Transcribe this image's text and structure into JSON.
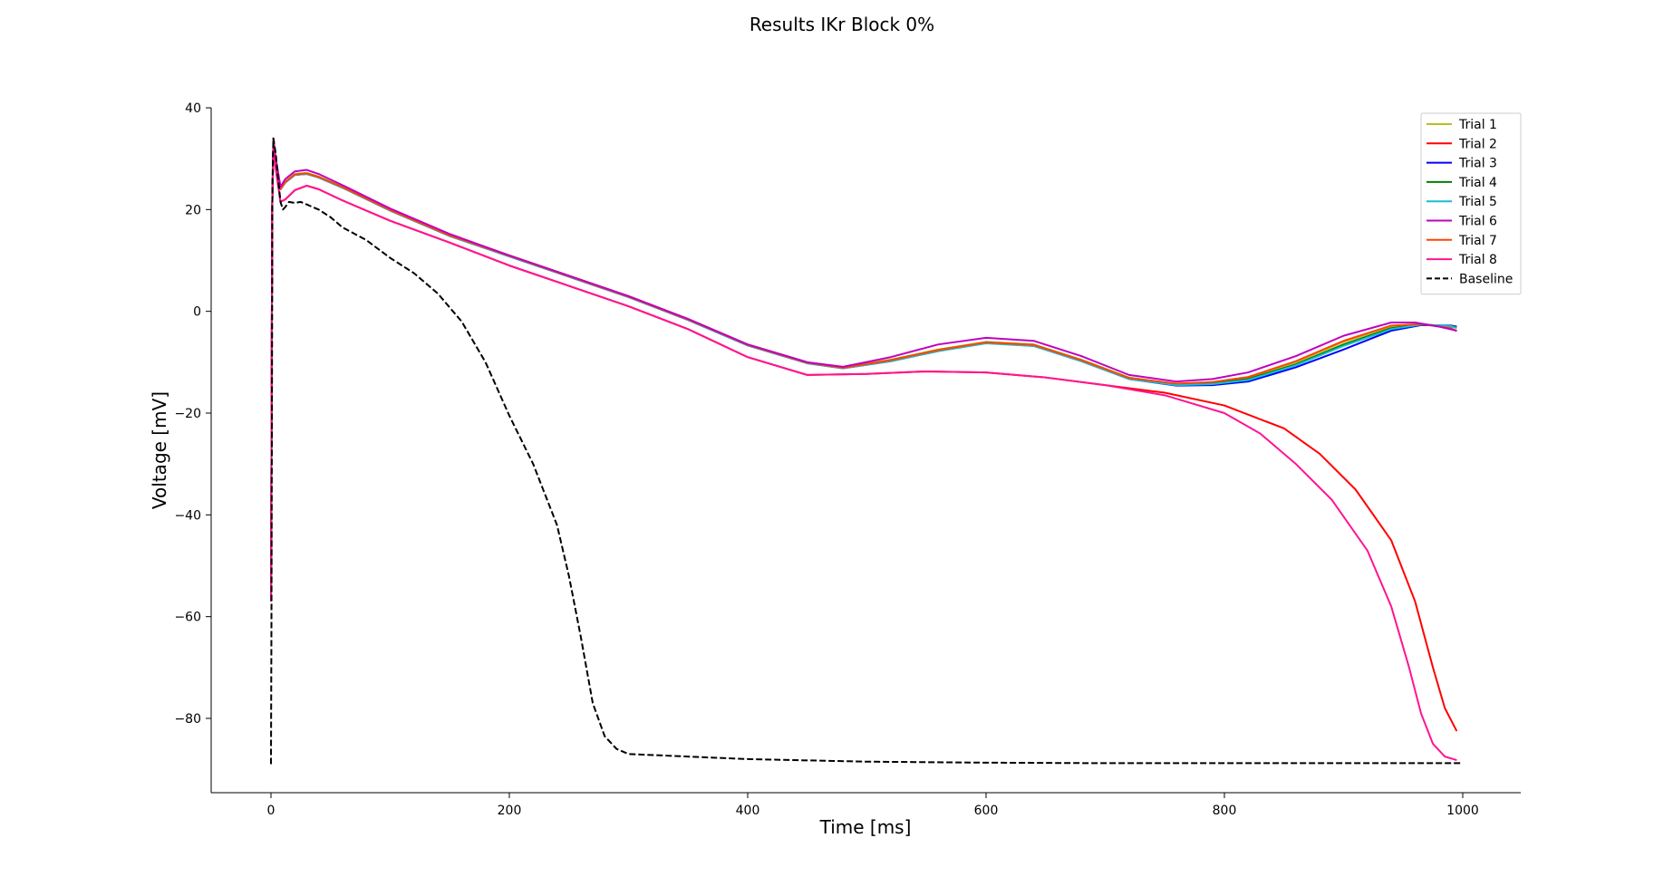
{
  "chart_data": {
    "type": "line",
    "title": "Results IKr Block 0%",
    "xlabel": "Time [ms]",
    "ylabel": "Voltage [mV]",
    "xlim": [
      -50,
      1050
    ],
    "ylim": [
      -95,
      40
    ],
    "xticks": [
      0,
      200,
      400,
      600,
      800,
      1000
    ],
    "xtick_labels": [
      "0",
      "200",
      "400",
      "600",
      "800",
      "1000"
    ],
    "yticks": [
      40,
      20,
      0,
      -20,
      -40,
      -60,
      -80
    ],
    "ytick_labels": [
      "40",
      "20",
      "0",
      "−20",
      "−40",
      "−60",
      "−80"
    ],
    "grid": false,
    "legend_position": "top-right",
    "series": [
      {
        "name": "Trial 1",
        "color": "#bcbd22",
        "dash": false,
        "x": [
          0,
          0.5,
          1,
          2,
          4,
          8,
          12,
          20,
          30,
          40,
          60,
          100,
          150,
          200,
          250,
          300,
          350,
          400,
          450,
          480,
          520,
          560,
          600,
          640,
          680,
          720,
          760,
          790,
          820,
          860,
          900,
          940,
          965,
          990,
          995
        ],
        "y": [
          -57,
          -20,
          20,
          33,
          30,
          24,
          25.5,
          27,
          27.2,
          26.5,
          24.5,
          20,
          15,
          11,
          7,
          3,
          -1.5,
          -6.5,
          -10,
          -11,
          -9.5,
          -7.5,
          -6,
          -6.5,
          -9.5,
          -13,
          -14.3,
          -14,
          -13,
          -10,
          -6,
          -3,
          -2.5,
          -3,
          -3.2
        ]
      },
      {
        "name": "Trial 2",
        "color": "#ff0000",
        "dash": false,
        "x": [
          0,
          0.5,
          1,
          2,
          4,
          8,
          12,
          20,
          30,
          40,
          60,
          100,
          150,
          200,
          250,
          300,
          350,
          400,
          450,
          500,
          550,
          600,
          650,
          700,
          750,
          800,
          850,
          880,
          910,
          940,
          960,
          975,
          985,
          995
        ],
        "y": [
          -57,
          -20,
          20,
          33,
          28,
          21.5,
          22,
          23.8,
          24.7,
          24,
          21.8,
          17.8,
          13.5,
          9,
          5,
          1,
          -3.5,
          -9,
          -12.5,
          -12.3,
          -11.8,
          -12,
          -13,
          -14.5,
          -16,
          -18.5,
          -23,
          -28,
          -35,
          -45,
          -57,
          -70,
          -78,
          -82.5
        ]
      },
      {
        "name": "Trial 3",
        "color": "#0000ff",
        "dash": false,
        "x": [
          0,
          0.5,
          1,
          2,
          4,
          8,
          12,
          20,
          30,
          40,
          60,
          100,
          150,
          200,
          250,
          300,
          350,
          400,
          450,
          480,
          520,
          560,
          600,
          640,
          680,
          720,
          760,
          790,
          820,
          860,
          900,
          940,
          965,
          990,
          995
        ],
        "y": [
          -57,
          -20,
          20,
          33,
          30,
          24,
          25.3,
          26.8,
          27,
          26.3,
          24.3,
          19.8,
          14.8,
          10.8,
          6.8,
          2.8,
          -1.7,
          -6.7,
          -10.2,
          -11.2,
          -9.8,
          -7.8,
          -6.2,
          -6.8,
          -9.8,
          -13.3,
          -14.6,
          -14.5,
          -13.8,
          -11,
          -7.5,
          -3.8,
          -2.7,
          -2.8,
          -3
        ]
      },
      {
        "name": "Trial 4",
        "color": "#008000",
        "dash": false,
        "x": [
          0,
          0.5,
          1,
          2,
          4,
          8,
          12,
          20,
          30,
          40,
          60,
          100,
          150,
          200,
          250,
          300,
          350,
          400,
          450,
          480,
          520,
          560,
          600,
          640,
          680,
          720,
          760,
          790,
          820,
          860,
          900,
          940,
          965,
          990,
          995
        ],
        "y": [
          -57,
          -20,
          20,
          33,
          30,
          24,
          25.4,
          26.9,
          27.1,
          26.4,
          24.4,
          19.9,
          14.9,
          10.9,
          6.9,
          2.9,
          -1.6,
          -6.6,
          -10.1,
          -11.1,
          -9.6,
          -7.6,
          -6.1,
          -6.6,
          -9.6,
          -13.1,
          -14.4,
          -14.2,
          -13.3,
          -10.4,
          -6.5,
          -3.3,
          -2.6,
          -2.9,
          -3.1
        ]
      },
      {
        "name": "Trial 5",
        "color": "#17becf",
        "dash": false,
        "x": [
          0,
          0.5,
          1,
          2,
          4,
          8,
          12,
          20,
          30,
          40,
          60,
          100,
          150,
          200,
          250,
          300,
          350,
          400,
          450,
          480,
          520,
          560,
          600,
          640,
          680,
          720,
          760,
          790,
          820,
          860,
          900,
          940,
          965,
          990,
          995
        ],
        "y": [
          -57,
          -20,
          20,
          33,
          30,
          24,
          25.3,
          26.8,
          27,
          26.3,
          24.3,
          19.8,
          14.8,
          10.8,
          6.8,
          2.8,
          -1.7,
          -6.7,
          -10.2,
          -11.2,
          -9.8,
          -7.8,
          -6.3,
          -6.8,
          -9.8,
          -13.3,
          -14.5,
          -14.3,
          -13.5,
          -10.6,
          -6.8,
          -3.5,
          -2.6,
          -2.9,
          -3.3
        ]
      },
      {
        "name": "Trial 6",
        "color": "#c000c0",
        "dash": false,
        "x": [
          0,
          0.5,
          1,
          2,
          4,
          8,
          12,
          20,
          30,
          40,
          60,
          100,
          150,
          200,
          250,
          300,
          350,
          400,
          450,
          480,
          520,
          560,
          600,
          640,
          680,
          720,
          760,
          790,
          820,
          860,
          900,
          940,
          960,
          980,
          995
        ],
        "y": [
          -57,
          -20,
          20,
          34,
          30,
          24.5,
          26,
          27.5,
          27.8,
          27,
          24.8,
          20.2,
          15.2,
          11,
          7,
          3,
          -1.5,
          -6.5,
          -10,
          -10.9,
          -9,
          -6.5,
          -5.2,
          -5.8,
          -8.8,
          -12.5,
          -13.8,
          -13.3,
          -12,
          -8.8,
          -4.8,
          -2.2,
          -2.2,
          -3,
          -3.8
        ]
      },
      {
        "name": "Trial 7",
        "color": "#ff4500",
        "dash": false,
        "x": [
          0,
          0.5,
          1,
          2,
          4,
          8,
          12,
          20,
          30,
          40,
          60,
          100,
          150,
          200,
          250,
          300,
          350,
          400,
          450,
          480,
          520,
          560,
          600,
          640,
          680,
          720,
          760,
          790,
          820,
          860,
          900,
          940,
          965,
          990,
          995
        ],
        "y": [
          -57,
          -20,
          20,
          33,
          30,
          24,
          25.4,
          26.9,
          27.1,
          26.4,
          24.4,
          19.9,
          14.9,
          10.9,
          6.9,
          2.9,
          -1.6,
          -6.6,
          -10.1,
          -11.1,
          -9.6,
          -7.6,
          -6.1,
          -6.6,
          -9.6,
          -13.1,
          -14.2,
          -13.9,
          -12.9,
          -9.8,
          -5.8,
          -2.8,
          -2.5,
          -3.3,
          -3.9
        ]
      },
      {
        "name": "Trial 8",
        "color": "#ff1493",
        "dash": false,
        "x": [
          0,
          0.5,
          1,
          2,
          4,
          8,
          12,
          20,
          30,
          40,
          60,
          100,
          150,
          200,
          250,
          300,
          350,
          400,
          450,
          500,
          550,
          600,
          650,
          700,
          750,
          800,
          830,
          860,
          890,
          920,
          940,
          955,
          965,
          975,
          985,
          995
        ],
        "y": [
          -57,
          -20,
          20,
          33,
          28,
          21.5,
          22,
          23.8,
          24.7,
          24,
          21.8,
          17.8,
          13.5,
          9,
          5,
          1,
          -3.5,
          -9,
          -12.5,
          -12.3,
          -11.8,
          -12,
          -13,
          -14.5,
          -16.5,
          -20,
          -24,
          -30,
          -37,
          -47,
          -58,
          -70,
          -79,
          -85,
          -87.5,
          -88.2
        ]
      },
      {
        "name": "Baseline",
        "color": "#000000",
        "dash": true,
        "x": [
          0,
          0.4,
          0.8,
          1.2,
          2,
          4,
          6,
          8,
          10,
          12,
          15,
          20,
          25,
          30,
          40,
          50,
          60,
          80,
          100,
          120,
          140,
          160,
          180,
          200,
          220,
          240,
          250,
          260,
          270,
          280,
          290,
          300,
          350,
          400,
          500,
          600,
          700,
          800,
          900,
          1000
        ],
        "y": [
          -89,
          -60,
          -20,
          25,
          34,
          31,
          26,
          21.5,
          20,
          20.5,
          21.5,
          21.3,
          21.5,
          21,
          20,
          18.5,
          16.5,
          14,
          10.5,
          7.5,
          3.5,
          -2,
          -10,
          -20.5,
          -30,
          -42,
          -52,
          -64,
          -77,
          -83.5,
          -86,
          -87,
          -87.5,
          -88,
          -88.5,
          -88.7,
          -88.8,
          -88.8,
          -88.8,
          -88.8
        ]
      }
    ]
  }
}
